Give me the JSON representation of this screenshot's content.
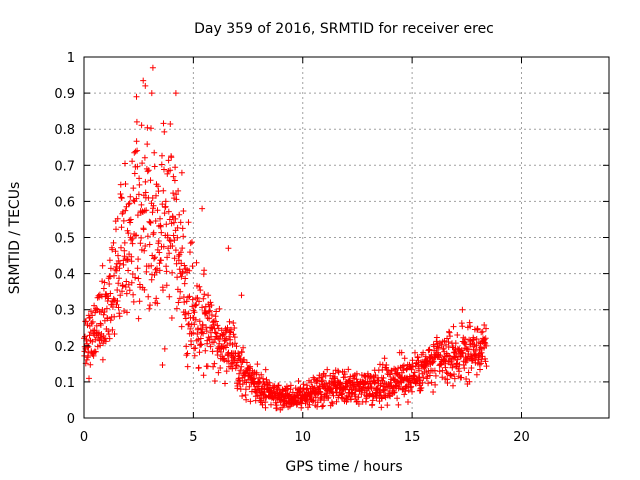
{
  "chart_data": {
    "type": "scatter",
    "title": "Day 359 of 2016, SRMTID for receiver erec",
    "xlabel": "GPS time / hours",
    "ylabel": "SRMTID / TECUs",
    "xlim": [
      0,
      24
    ],
    "ylim": [
      0,
      1
    ],
    "x_ticks": [
      0,
      5,
      10,
      15,
      20
    ],
    "y_ticks": [
      0,
      0.1,
      0.2,
      0.3,
      0.4,
      0.5,
      0.6,
      0.7,
      0.8,
      0.9,
      1
    ],
    "x_tick_labels": [
      "0",
      "5",
      "10",
      "15",
      "20"
    ],
    "y_tick_labels": [
      "0",
      "0.1",
      "0.2",
      "0.3",
      "0.4",
      "0.5",
      "0.6",
      "0.7",
      "0.8",
      "0.9",
      "1"
    ],
    "grid": true,
    "marker": "+",
    "series": [
      {
        "name": "erec",
        "color": "#ff0000",
        "trend": {
          "x": [
            0,
            0.5,
            1.0,
            1.5,
            2.0,
            2.5,
            3.0,
            3.5,
            4.0,
            4.5,
            5.0,
            5.5,
            6.0,
            6.5,
            7.0,
            7.5,
            8.0,
            9.0,
            10.0,
            11.0,
            12.0,
            13.0,
            14.0,
            15.0,
            16.0,
            17.0,
            18.0,
            18.4
          ],
          "y": [
            0.2,
            0.24,
            0.3,
            0.4,
            0.5,
            0.58,
            0.55,
            0.5,
            0.55,
            0.42,
            0.3,
            0.28,
            0.23,
            0.2,
            0.15,
            0.11,
            0.08,
            0.06,
            0.06,
            0.08,
            0.08,
            0.09,
            0.1,
            0.12,
            0.15,
            0.17,
            0.19,
            0.19
          ]
        },
        "spread": {
          "x": [
            0,
            0.5,
            1.0,
            1.5,
            2.0,
            2.5,
            3.0,
            3.5,
            4.0,
            4.5,
            5.0,
            5.5,
            6.0,
            6.5,
            7.0,
            7.5,
            8.0,
            9.0,
            10.0,
            11.0,
            12.0,
            13.0,
            14.0,
            15.0,
            16.0,
            17.0,
            18.0,
            18.4
          ],
          "y": [
            0.05,
            0.08,
            0.1,
            0.13,
            0.18,
            0.2,
            0.2,
            0.18,
            0.18,
            0.14,
            0.12,
            0.1,
            0.07,
            0.06,
            0.05,
            0.04,
            0.03,
            0.025,
            0.025,
            0.03,
            0.03,
            0.035,
            0.04,
            0.045,
            0.05,
            0.05,
            0.05,
            0.05
          ]
        },
        "x_range": [
          0,
          18.4
        ],
        "n_points": 1600,
        "peaks": [
          {
            "x": 3.15,
            "y": 0.97
          },
          {
            "x": 3.1,
            "y": 0.9
          },
          {
            "x": 2.4,
            "y": 0.89
          },
          {
            "x": 2.8,
            "y": 0.92
          },
          {
            "x": 4.2,
            "y": 0.9
          },
          {
            "x": 17.3,
            "y": 0.3
          },
          {
            "x": 6.6,
            "y": 0.47
          },
          {
            "x": 5.4,
            "y": 0.58
          },
          {
            "x": 7.2,
            "y": 0.34
          }
        ]
      }
    ]
  }
}
